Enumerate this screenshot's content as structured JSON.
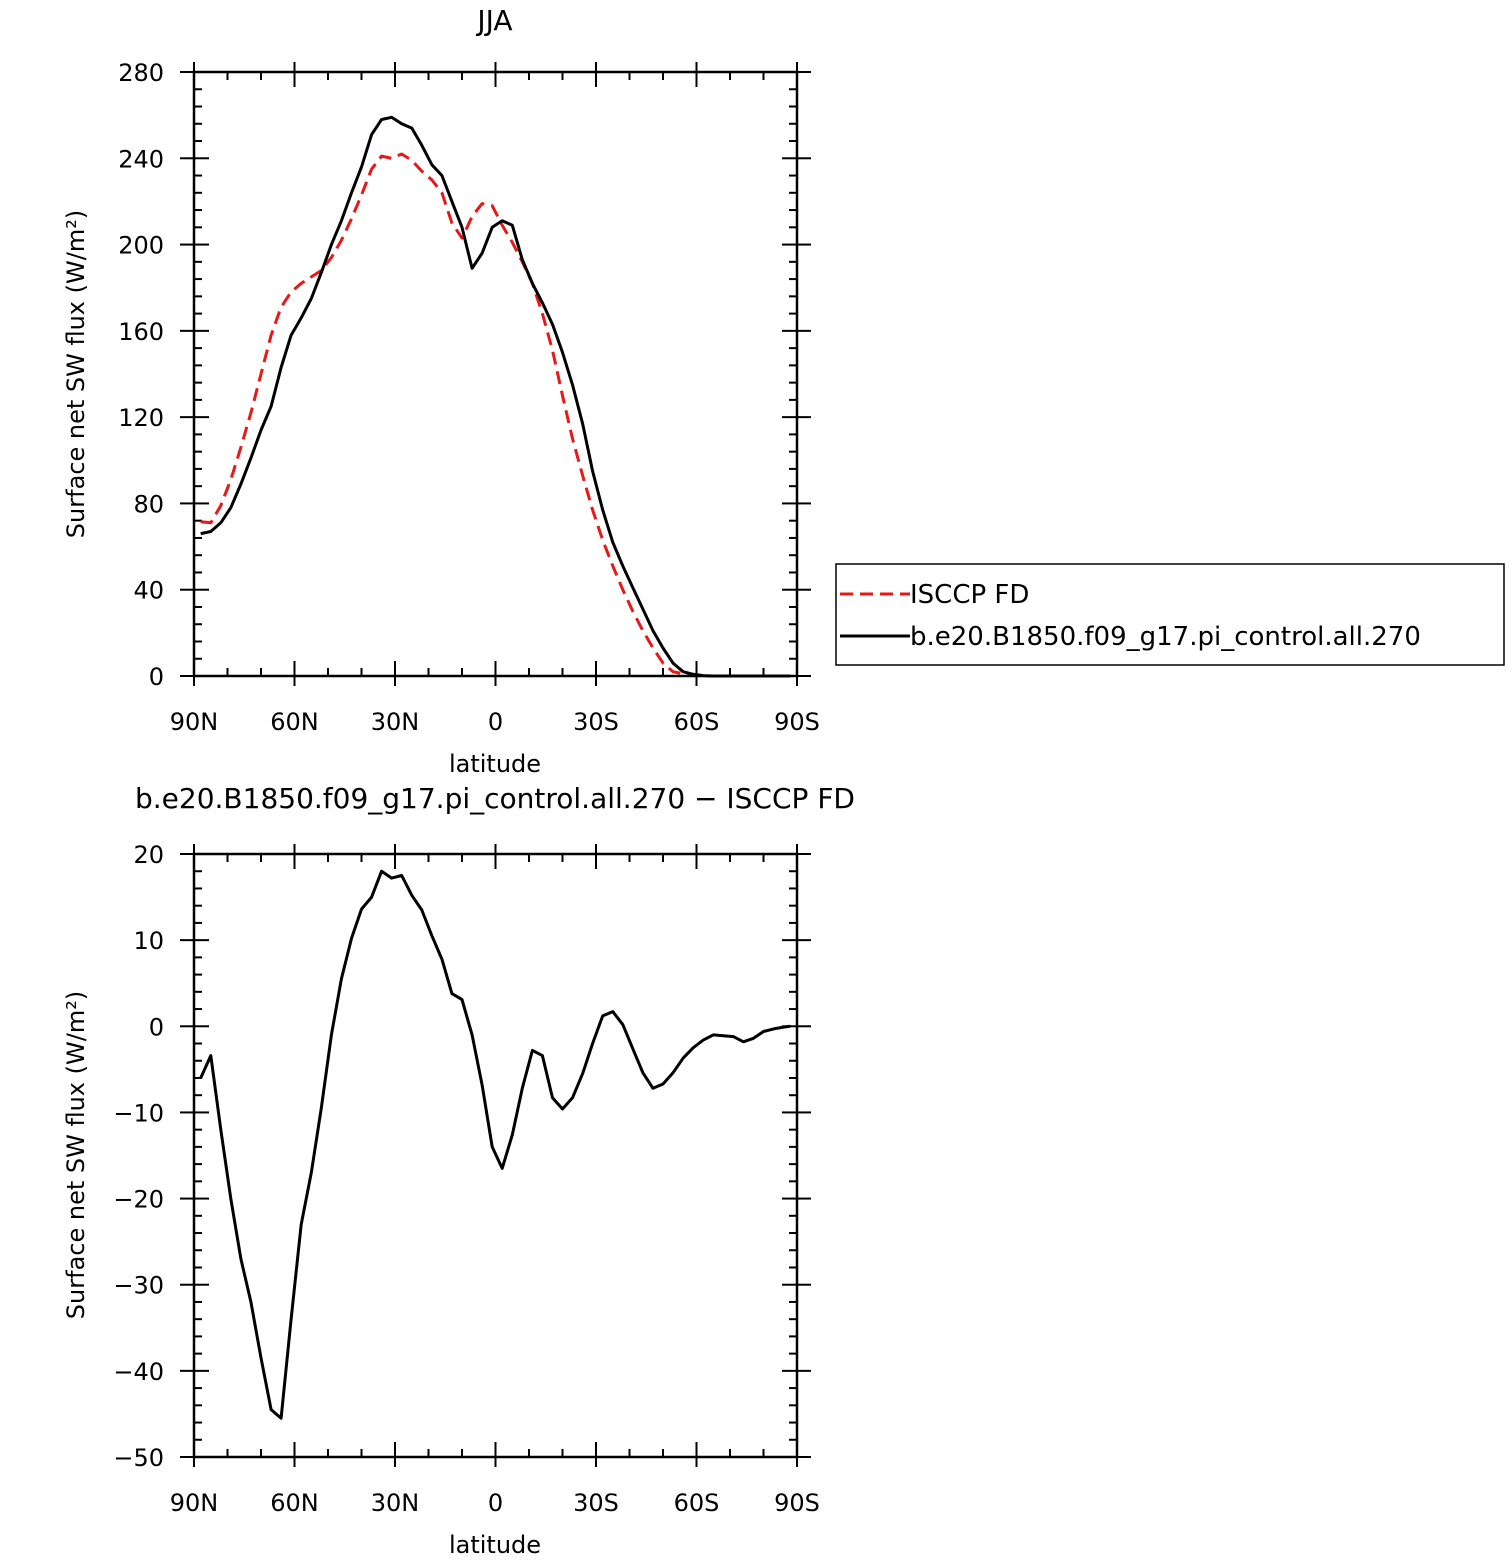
{
  "chart_data": [
    {
      "type": "line",
      "title": "JJA",
      "xlabel": "latitude",
      "ylabel": "Surface net SW flux (W/m²)",
      "xlim": [
        90,
        -90
      ],
      "ylim": [
        0,
        280
      ],
      "xticks": [
        90,
        60,
        30,
        0,
        -30,
        -60,
        -90
      ],
      "xtick_labels": [
        "90N",
        "60N",
        "30N",
        "0",
        "30S",
        "60S",
        "90S"
      ],
      "yticks": [
        0,
        40,
        80,
        120,
        160,
        200,
        240,
        280
      ],
      "ytick_labels": [
        "0",
        "40",
        "80",
        "120",
        "160",
        "200",
        "240",
        "280"
      ],
      "grid": false,
      "legend_position": "right",
      "series": [
        {
          "name": "ISCCP FD",
          "color": "#e81818",
          "style": "dashed",
          "x": [
            88,
            85,
            82,
            79,
            76,
            73,
            70,
            67,
            64,
            61,
            58,
            55,
            52,
            49,
            46,
            43,
            40,
            37,
            34,
            31,
            28,
            25,
            22,
            19,
            16,
            13,
            10,
            7,
            4,
            1,
            -2,
            -5,
            -8,
            -11,
            -14,
            -17,
            -20,
            -23,
            -26,
            -29,
            -32,
            -35,
            -38,
            -41,
            -44,
            -47,
            -50,
            -53,
            -56,
            -59,
            -62,
            -65,
            -68,
            -71,
            -74,
            -77,
            -80,
            -83,
            -86,
            -88
          ],
          "y": [
            71.5,
            71,
            79,
            91,
            106,
            122,
            140,
            158,
            171,
            178,
            182,
            185,
            188,
            194,
            202,
            212,
            223,
            235,
            241,
            240,
            242,
            239,
            234,
            230,
            224,
            210,
            203,
            213,
            219,
            218,
            209,
            201,
            192,
            182,
            168,
            151,
            130,
            110,
            93,
            77,
            63,
            51,
            40,
            30,
            21,
            13,
            6,
            2,
            1,
            0.5,
            0,
            0,
            0,
            0,
            0,
            0,
            0,
            0,
            0,
            0
          ]
        },
        {
          "name": "b.e20.B1850.f09_g17.pi_control.all.270",
          "color": "#000000",
          "style": "solid",
          "x": [
            88,
            85,
            82,
            79,
            76,
            73,
            70,
            67,
            64,
            61,
            58,
            55,
            52,
            49,
            46,
            43,
            40,
            37,
            34,
            31,
            28,
            25,
            22,
            19,
            16,
            13,
            10,
            7,
            4,
            1,
            -2,
            -5,
            -8,
            -11,
            -14,
            -17,
            -20,
            -23,
            -26,
            -29,
            -32,
            -35,
            -38,
            -41,
            -44,
            -47,
            -50,
            -53,
            -56,
            -59,
            -62,
            -65,
            -68,
            -71,
            -74,
            -77,
            -80,
            -83,
            -86,
            -88
          ],
          "y": [
            66,
            67,
            71,
            78,
            89,
            101,
            114,
            125,
            143,
            158,
            166,
            175,
            187,
            200,
            211,
            224,
            236,
            251,
            258,
            259,
            256,
            254,
            246,
            237,
            232,
            220,
            208,
            189,
            196,
            208,
            211,
            209,
            193,
            182,
            173,
            163,
            150,
            135,
            117,
            95,
            77,
            62,
            51,
            41,
            31,
            21,
            13,
            6,
            2,
            0.8,
            0.2,
            0,
            0,
            0,
            0,
            0,
            0,
            0,
            0,
            0
          ]
        }
      ]
    },
    {
      "type": "line",
      "title": "b.e20.B1850.f09_g17.pi_control.all.270 − ISCCP FD",
      "xlabel": "latitude",
      "ylabel": "Surface net SW flux (W/m²)",
      "xlim": [
        90,
        -90
      ],
      "ylim": [
        -50,
        20
      ],
      "xticks": [
        90,
        60,
        30,
        0,
        -30,
        -60,
        -90
      ],
      "xtick_labels": [
        "90N",
        "60N",
        "30N",
        "0",
        "30S",
        "60S",
        "90S"
      ],
      "yticks": [
        -50,
        -40,
        -30,
        -20,
        -10,
        0,
        10,
        20
      ],
      "ytick_labels": [
        "−50",
        "−40",
        "−30",
        "−20",
        "−10",
        "0",
        "10",
        "20"
      ],
      "grid": false,
      "series": [
        {
          "color": "#000000",
          "style": "solid",
          "x": [
            88,
            85,
            82,
            79,
            76,
            73,
            70,
            67,
            64,
            61,
            58,
            55,
            52,
            49,
            46,
            43,
            40,
            37,
            34,
            31,
            28,
            25,
            22,
            19,
            16,
            13,
            10,
            7,
            4,
            1,
            -2,
            -5,
            -8,
            -11,
            -14,
            -17,
            -20,
            -23,
            -26,
            -29,
            -32,
            -35,
            -38,
            -41,
            -44,
            -47,
            -50,
            -53,
            -56,
            -59,
            -62,
            -65,
            -68,
            -71,
            -74,
            -77,
            -80,
            -83,
            -86,
            -88
          ],
          "y": [
            -6,
            -3.4,
            -12,
            -20,
            -27,
            -32,
            -38.5,
            -44.5,
            -45.5,
            -34,
            -23,
            -17,
            -9.5,
            -1,
            5.5,
            10.2,
            13.6,
            15,
            18,
            17.2,
            17.5,
            15.2,
            13.5,
            10.5,
            7.8,
            3.8,
            3.1,
            -1,
            -6.8,
            -14,
            -16.5,
            -12.6,
            -7.2,
            -2.8,
            -3.4,
            -8.3,
            -9.6,
            -8.3,
            -5.5,
            -2,
            1.2,
            1.7,
            0.2,
            -2.6,
            -5.4,
            -7.2,
            -6.7,
            -5.4,
            -3.7,
            -2.5,
            -1.6,
            -1.0,
            -1.1,
            -1.2,
            -1.8,
            -1.4,
            -0.6,
            -0.3,
            -0.1,
            0
          ]
        }
      ]
    }
  ]
}
